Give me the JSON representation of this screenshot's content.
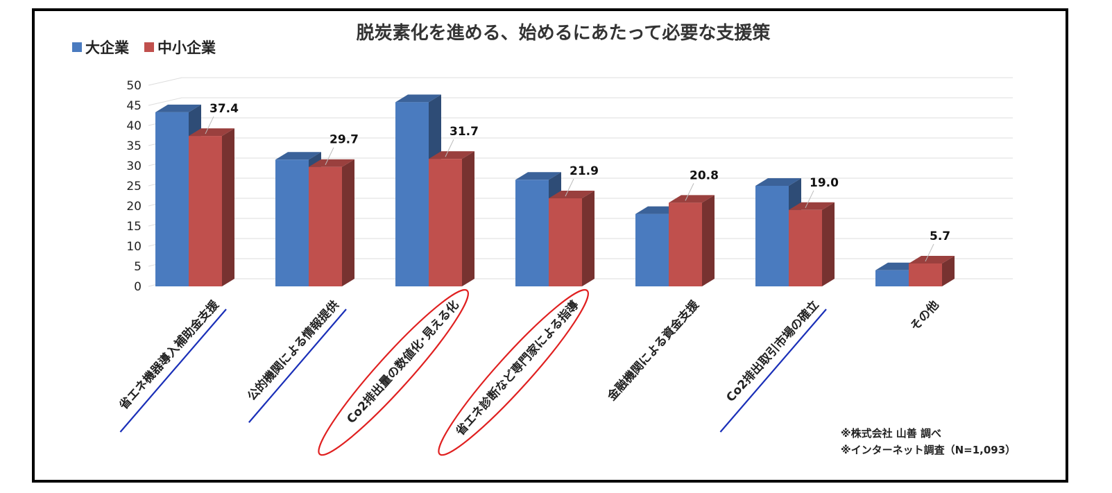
{
  "chart_data": {
    "type": "bar",
    "title": "脱炭素化を進める、始めるにあたって必要な支援策",
    "categories": [
      "省エネ機器導入補助金支援",
      "公的機関による情報提供",
      "Co2排出量の数値化･見える化",
      "省エネ診断など専門家による指導",
      "金融機関による資金支援",
      "Co2排出取引市場の確立",
      "その他"
    ],
    "series": [
      {
        "name": "大企業",
        "color": "#4a7bbf",
        "values": [
          43.3,
          31.5,
          45.8,
          26.5,
          18.0,
          25.0,
          4.0
        ],
        "labels": [
          "",
          "",
          "",
          "",
          "",
          "",
          ""
        ]
      },
      {
        "name": "中小企業",
        "color": "#c0504d",
        "values": [
          37.4,
          29.7,
          31.7,
          21.9,
          20.8,
          19.0,
          5.7
        ],
        "labels": [
          "37.4",
          "29.7",
          "31.7",
          "21.9",
          "20.8",
          "19.0",
          "5.7"
        ]
      }
    ],
    "ylim": [
      0,
      50
    ],
    "yticks": [
      0,
      5,
      10,
      15,
      20,
      25,
      30,
      35,
      40,
      45,
      50
    ],
    "grid": true,
    "legend_position": "top-left",
    "blue_underline_categories": [
      0,
      1,
      5
    ],
    "red_circle_categories": [
      2,
      3
    ],
    "source_notes": [
      "※株式会社 山善 調べ",
      "※インターネット調査（N=1,093）"
    ]
  }
}
